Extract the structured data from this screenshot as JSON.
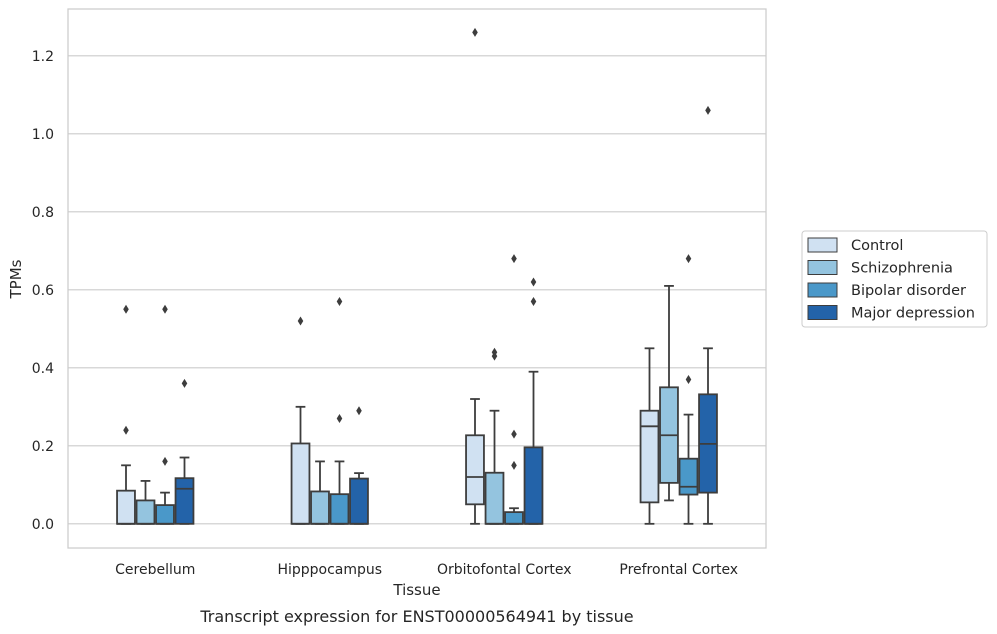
{
  "caption": "Transcript expression for ENST00000564941 by tissue",
  "chart_data": {
    "type": "box",
    "title": "",
    "xlabel": "Tissue",
    "ylabel": "TPMs",
    "ylim": [
      -0.062,
      1.32
    ],
    "yticks": [
      0.0,
      0.2,
      0.4,
      0.6,
      0.8,
      1.0,
      1.2
    ],
    "ytick_labels": [
      "0.0",
      "0.2",
      "0.4",
      "0.6",
      "0.8",
      "1.0",
      "1.2"
    ],
    "grid": "horizontal",
    "legend_position": "right",
    "categories": [
      "Cerebellum",
      "Hipppocampus",
      "Orbitofontal Cortex",
      "Prefrontal Cortex"
    ],
    "series": [
      {
        "name": "Control",
        "color": "#d0e1f2",
        "boxes": [
          {
            "min": 0.0,
            "q1": 0.0,
            "median": 0.0,
            "q3": 0.085,
            "max": 0.15,
            "outliers": [
              0.24,
              0.55
            ]
          },
          {
            "min": 0.0,
            "q1": 0.0,
            "median": 0.0,
            "q3": 0.206,
            "max": 0.3,
            "outliers": [
              0.52
            ]
          },
          {
            "min": 0.0,
            "q1": 0.05,
            "median": 0.12,
            "q3": 0.227,
            "max": 0.32,
            "outliers": [
              1.26
            ]
          },
          {
            "min": 0.0,
            "q1": 0.055,
            "median": 0.25,
            "q3": 0.29,
            "max": 0.45,
            "outliers": []
          }
        ]
      },
      {
        "name": "Schizophrenia",
        "color": "#94c4df",
        "boxes": [
          {
            "min": 0.0,
            "q1": 0.0,
            "median": 0.0,
            "q3": 0.06,
            "max": 0.11,
            "outliers": []
          },
          {
            "min": 0.0,
            "q1": 0.0,
            "median": 0.0,
            "q3": 0.083,
            "max": 0.16,
            "outliers": []
          },
          {
            "min": 0.0,
            "q1": 0.0,
            "median": 0.0,
            "q3": 0.131,
            "max": 0.29,
            "outliers": [
              0.43,
              0.44
            ]
          },
          {
            "min": 0.06,
            "q1": 0.105,
            "median": 0.227,
            "q3": 0.35,
            "max": 0.61,
            "outliers": []
          }
        ]
      },
      {
        "name": "Bipolar disorder",
        "color": "#4a98c9",
        "boxes": [
          {
            "min": 0.0,
            "q1": 0.0,
            "median": 0.0,
            "q3": 0.048,
            "max": 0.08,
            "outliers": [
              0.16,
              0.55
            ]
          },
          {
            "min": 0.0,
            "q1": 0.0,
            "median": 0.0,
            "q3": 0.076,
            "max": 0.16,
            "outliers": [
              0.27,
              0.57
            ]
          },
          {
            "min": 0.0,
            "q1": 0.0,
            "median": 0.0,
            "q3": 0.03,
            "max": 0.04,
            "outliers": [
              0.15,
              0.23,
              0.68
            ]
          },
          {
            "min": 0.0,
            "q1": 0.075,
            "median": 0.095,
            "q3": 0.167,
            "max": 0.28,
            "outliers": [
              0.37,
              0.68
            ]
          }
        ]
      },
      {
        "name": "Major depression",
        "color": "#2363a9",
        "boxes": [
          {
            "min": 0.0,
            "q1": 0.0,
            "median": 0.09,
            "q3": 0.117,
            "max": 0.17,
            "outliers": [
              0.36
            ]
          },
          {
            "min": 0.0,
            "q1": 0.0,
            "median": 0.0,
            "q3": 0.116,
            "max": 0.13,
            "outliers": [
              0.29
            ]
          },
          {
            "min": 0.0,
            "q1": 0.0,
            "median": 0.0,
            "q3": 0.196,
            "max": 0.39,
            "outliers": [
              0.57,
              0.62
            ]
          },
          {
            "min": 0.0,
            "q1": 0.08,
            "median": 0.205,
            "q3": 0.332,
            "max": 0.45,
            "outliers": [
              1.06
            ]
          }
        ]
      }
    ]
  }
}
